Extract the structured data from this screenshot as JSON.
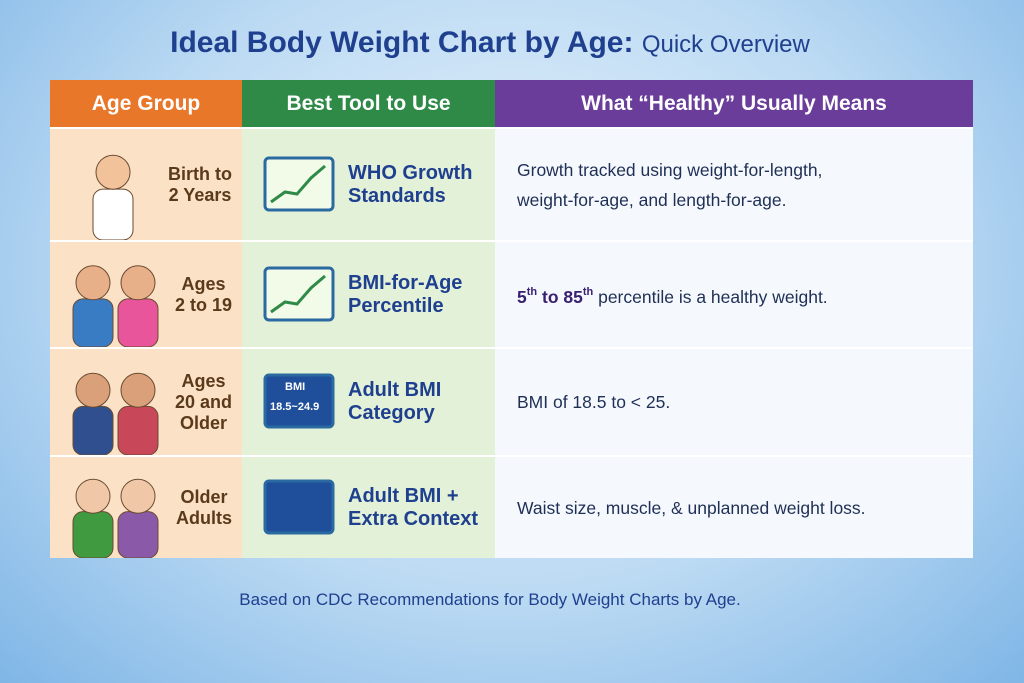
{
  "header": {
    "title": "Ideal Body Weight Chart by Age:",
    "subtitle": "Quick Overview"
  },
  "table": {
    "headers": [
      "Age Group",
      "Best Tool to Use",
      "What “Healthy” Usually Means"
    ],
    "rows": [
      {
        "age": [
          "Birth to",
          "2 Years"
        ],
        "tool": [
          "WHO Growth",
          "Standards"
        ],
        "description": [
          "Growth tracked using weight-for-length,",
          "weight-for-age, and length-for-age."
        ]
      },
      {
        "age": [
          "Ages",
          "2 to 19"
        ],
        "tool": [
          "BMI-for-Age",
          "Percentile"
        ],
        "description": {
          "low": "5",
          "low_suffix": "th",
          "joiner": " to ",
          "high": "85",
          "high_suffix": "th",
          "rest": " percentile is a healthy weight."
        }
      },
      {
        "age": [
          "Ages",
          "20 and",
          "Older"
        ],
        "tool": [
          "Adult BMI",
          "Category"
        ],
        "icon": {
          "label": "BMI",
          "range": "18.5~24.9"
        },
        "description": [
          "BMI of 18.5 to < 25."
        ]
      },
      {
        "age": [
          "Older",
          "Adults"
        ],
        "tool": [
          "Adult BMI +",
          "Extra Context"
        ],
        "description": [
          "Waist size, muscle, & unplanned weight loss."
        ]
      }
    ]
  },
  "footer": "Based on CDC Recommendations for Body Weight Charts by Age."
}
